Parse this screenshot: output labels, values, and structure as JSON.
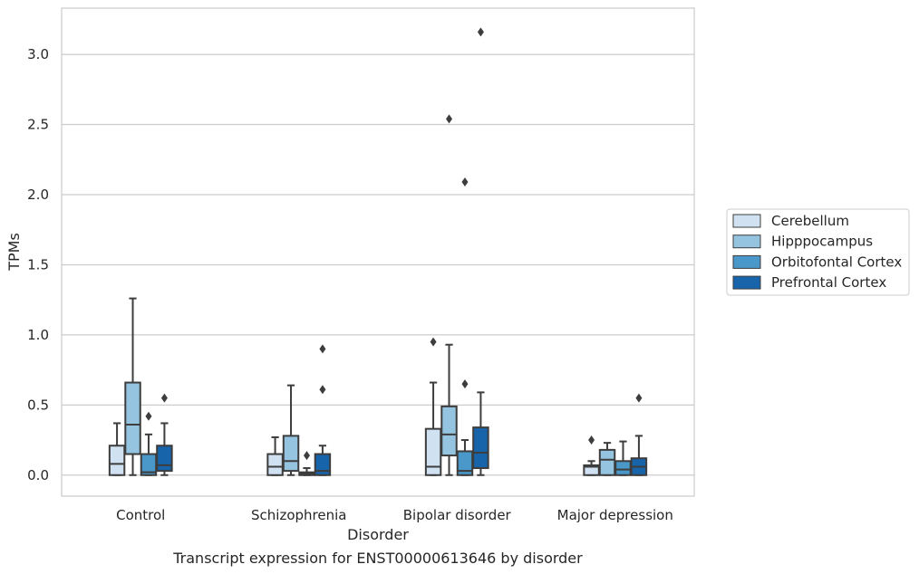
{
  "caption": "Transcript expression for ENST00000613646 by disorder",
  "chart_data": {
    "type": "box",
    "title": "",
    "xlabel": "Disorder",
    "ylabel": "TPMs",
    "ylim": [
      -0.15,
      3.33
    ],
    "yticks": [
      0.0,
      0.5,
      1.0,
      1.5,
      2.0,
      2.5,
      3.0
    ],
    "ytick_labels": [
      "0.0",
      "0.5",
      "1.0",
      "1.5",
      "2.0",
      "2.5",
      "3.0"
    ],
    "grid": "horizontal",
    "legend_position": "right",
    "categories": [
      "Control",
      "Schizophrenia",
      "Bipolar disorder",
      "Major depression"
    ],
    "series": [
      {
        "name": "Cerebellum",
        "color": "#d0e1f2",
        "boxes": [
          {
            "whislo": 0.0,
            "q1": 0.0,
            "med": 0.08,
            "q3": 0.21,
            "whishi": 0.37,
            "fliers": []
          },
          {
            "whislo": 0.0,
            "q1": 0.0,
            "med": 0.06,
            "q3": 0.15,
            "whishi": 0.27,
            "fliers": []
          },
          {
            "whislo": 0.0,
            "q1": 0.0,
            "med": 0.06,
            "q3": 0.33,
            "whishi": 0.66,
            "fliers": [
              0.95
            ]
          },
          {
            "whislo": 0.0,
            "q1": 0.0,
            "med": 0.06,
            "q3": 0.07,
            "whishi": 0.1,
            "fliers": [
              0.25
            ]
          }
        ]
      },
      {
        "name": "Hipppocampus",
        "color": "#94c4df",
        "boxes": [
          {
            "whislo": 0.0,
            "q1": 0.15,
            "med": 0.36,
            "q3": 0.66,
            "whishi": 1.26,
            "fliers": []
          },
          {
            "whislo": 0.0,
            "q1": 0.03,
            "med": 0.1,
            "q3": 0.28,
            "whishi": 0.64,
            "fliers": []
          },
          {
            "whislo": 0.0,
            "q1": 0.14,
            "med": 0.29,
            "q3": 0.49,
            "whishi": 0.93,
            "fliers": [
              2.54
            ]
          },
          {
            "whislo": 0.0,
            "q1": 0.0,
            "med": 0.11,
            "q3": 0.18,
            "whishi": 0.23,
            "fliers": []
          }
        ]
      },
      {
        "name": "Orbitofontal Cortex",
        "color": "#4a98c9",
        "boxes": [
          {
            "whislo": 0.0,
            "q1": 0.0,
            "med": 0.02,
            "q3": 0.15,
            "whishi": 0.29,
            "fliers": [
              0.42
            ]
          },
          {
            "whislo": 0.0,
            "q1": 0.0,
            "med": 0.01,
            "q3": 0.02,
            "whishi": 0.05,
            "fliers": [
              0.14
            ]
          },
          {
            "whislo": 0.0,
            "q1": 0.0,
            "med": 0.03,
            "q3": 0.17,
            "whishi": 0.25,
            "fliers": [
              0.65,
              2.09
            ]
          },
          {
            "whislo": 0.0,
            "q1": 0.0,
            "med": 0.04,
            "q3": 0.1,
            "whishi": 0.24,
            "fliers": []
          }
        ]
      },
      {
        "name": "Prefrontal Cortex",
        "color": "#1764ab",
        "boxes": [
          {
            "whislo": 0.0,
            "q1": 0.03,
            "med": 0.07,
            "q3": 0.21,
            "whishi": 0.37,
            "fliers": [
              0.55
            ]
          },
          {
            "whislo": 0.0,
            "q1": 0.0,
            "med": 0.03,
            "q3": 0.15,
            "whishi": 0.21,
            "fliers": [
              0.61,
              0.9
            ]
          },
          {
            "whislo": 0.0,
            "q1": 0.05,
            "med": 0.16,
            "q3": 0.34,
            "whishi": 0.59,
            "fliers": [
              3.16
            ]
          },
          {
            "whislo": 0.0,
            "q1": 0.0,
            "med": 0.06,
            "q3": 0.12,
            "whishi": 0.28,
            "fliers": [
              0.55
            ]
          }
        ]
      }
    ]
  }
}
